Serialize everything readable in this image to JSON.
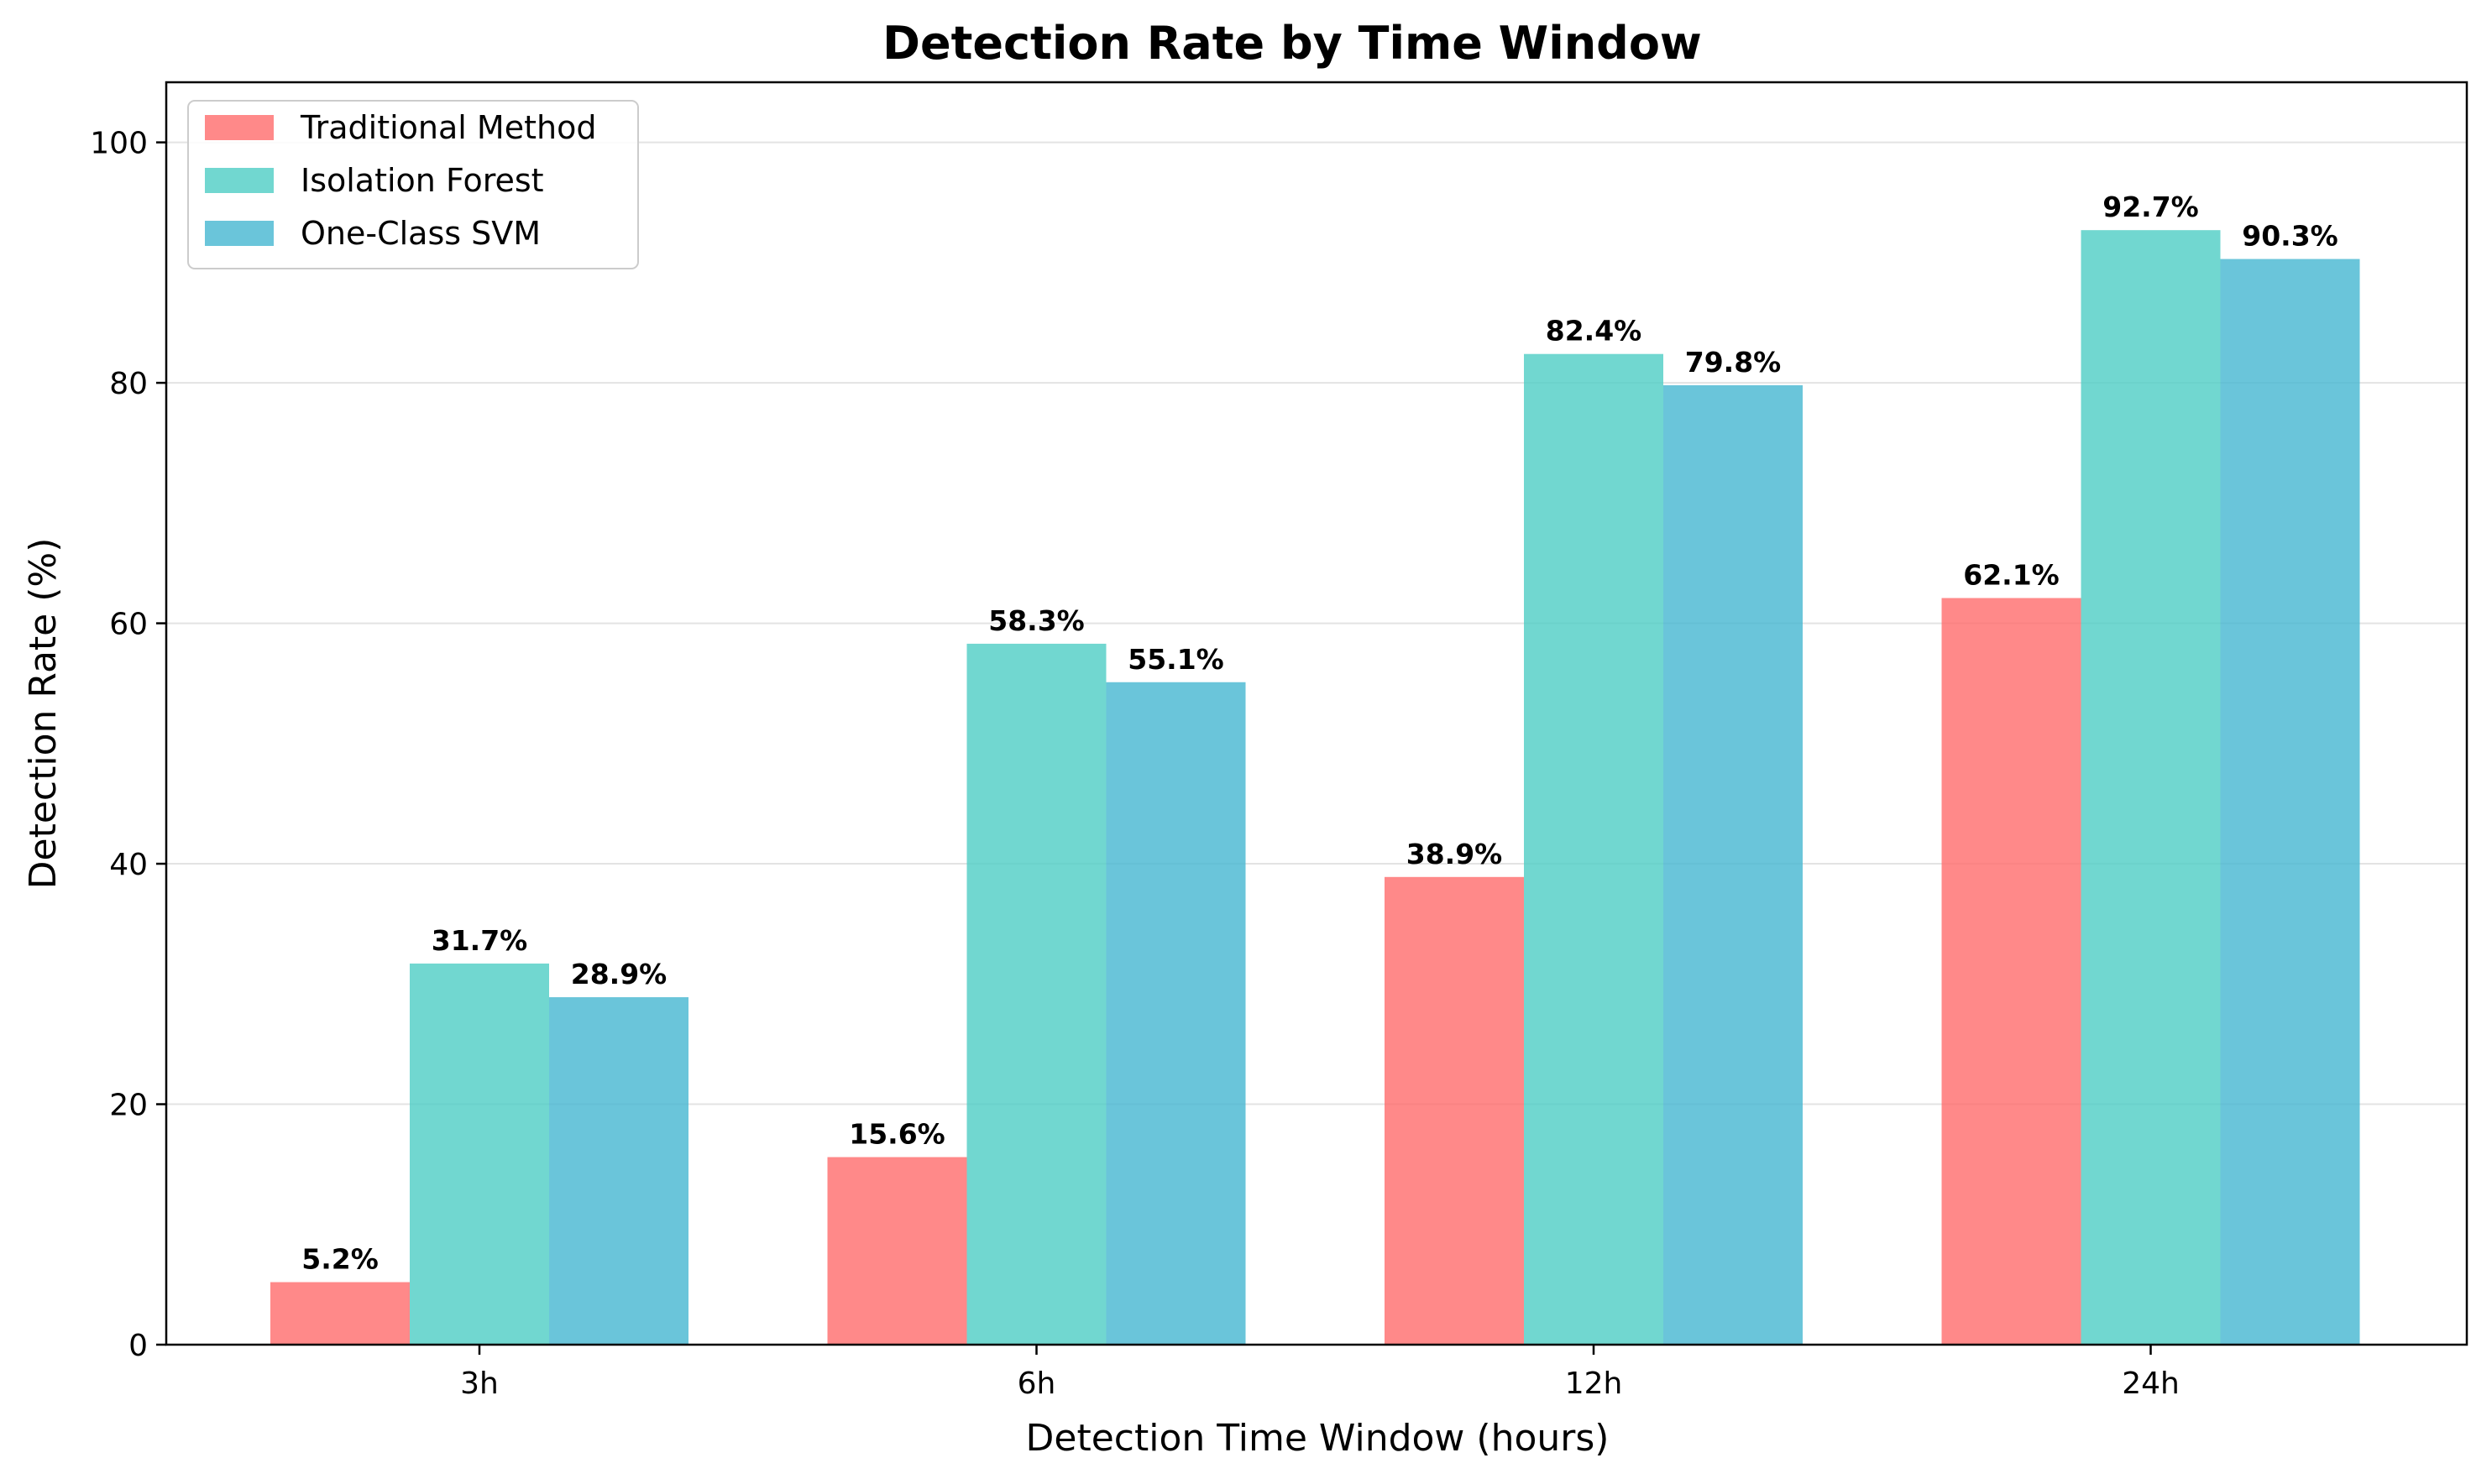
{
  "chart_data": {
    "type": "bar",
    "title": "Detection Rate by Time Window",
    "xlabel": "Detection Time Window (hours)",
    "ylabel": "Detection Rate (%)",
    "categories": [
      "3h",
      "6h",
      "12h",
      "24h"
    ],
    "ylim": [
      0,
      105
    ],
    "yticks": [
      0,
      20,
      40,
      60,
      80,
      100
    ],
    "grid": "horizontal",
    "legend_position": "top-left",
    "series": [
      {
        "name": "Traditional Method",
        "color": "#FF6B6B",
        "values": [
          5.2,
          15.6,
          38.9,
          62.1
        ],
        "labels": [
          "5.2%",
          "15.6%",
          "38.9%",
          "62.1%"
        ]
      },
      {
        "name": "Isolation Forest",
        "color": "#4ECDC4",
        "values": [
          31.7,
          58.3,
          82.4,
          92.7
        ],
        "labels": [
          "31.7%",
          "58.3%",
          "82.4%",
          "92.7%"
        ]
      },
      {
        "name": "One-Class SVM",
        "color": "#45B7D1",
        "values": [
          28.9,
          55.1,
          79.8,
          90.3
        ],
        "labels": [
          "28.9%",
          "55.1%",
          "79.8%",
          "90.3%"
        ]
      }
    ]
  }
}
